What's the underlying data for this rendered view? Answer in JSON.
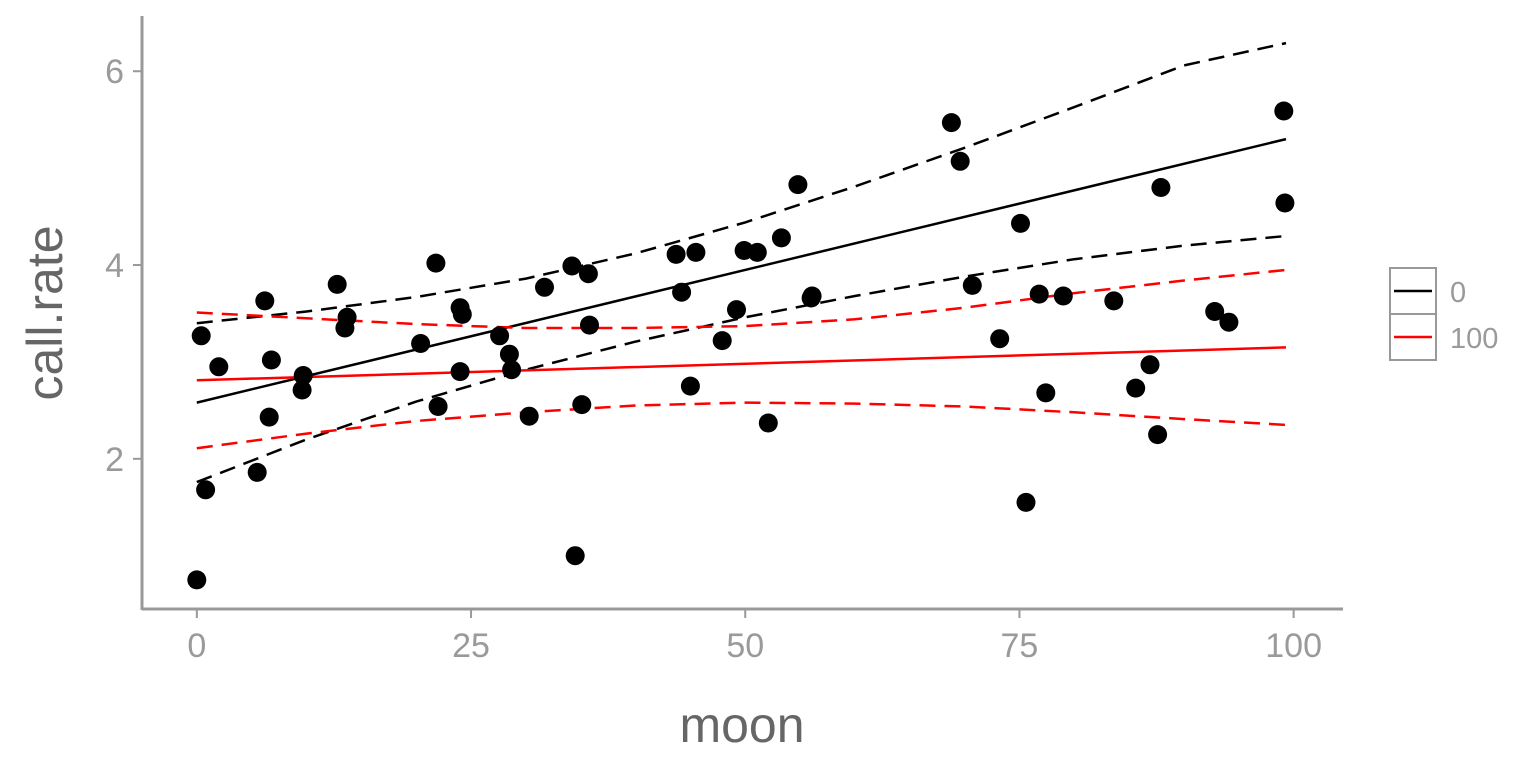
{
  "chart_data": {
    "type": "scatter",
    "title": "",
    "xlabel": "moon",
    "ylabel": "call.rate",
    "xlim": [
      -5,
      104.5
    ],
    "ylim": [
      0.45,
      6.57
    ],
    "xticks": [
      0,
      25,
      50,
      75,
      100
    ],
    "xtick_labels": [
      "0",
      "25",
      "50",
      "75",
      "100"
    ],
    "yticks": [
      2,
      4,
      6
    ],
    "ytick_labels": [
      "2",
      "4",
      "6"
    ],
    "grid": false,
    "legend_position": "right",
    "points": [
      {
        "x": 0.0,
        "y": 0.75
      },
      {
        "x": 0.4,
        "y": 3.27
      },
      {
        "x": 0.8,
        "y": 1.68
      },
      {
        "x": 2.0,
        "y": 2.95
      },
      {
        "x": 5.5,
        "y": 1.86
      },
      {
        "x": 6.2,
        "y": 3.63
      },
      {
        "x": 6.6,
        "y": 2.43
      },
      {
        "x": 6.8,
        "y": 3.02
      },
      {
        "x": 9.6,
        "y": 2.71
      },
      {
        "x": 9.7,
        "y": 2.86
      },
      {
        "x": 12.8,
        "y": 3.8
      },
      {
        "x": 13.5,
        "y": 3.35
      },
      {
        "x": 13.7,
        "y": 3.46
      },
      {
        "x": 20.4,
        "y": 3.19
      },
      {
        "x": 21.8,
        "y": 4.02
      },
      {
        "x": 22.0,
        "y": 2.54
      },
      {
        "x": 24.0,
        "y": 3.56
      },
      {
        "x": 24.0,
        "y": 2.9
      },
      {
        "x": 24.2,
        "y": 3.49
      },
      {
        "x": 27.6,
        "y": 3.27
      },
      {
        "x": 28.5,
        "y": 3.08
      },
      {
        "x": 28.7,
        "y": 2.92
      },
      {
        "x": 30.3,
        "y": 2.44
      },
      {
        "x": 31.7,
        "y": 3.77
      },
      {
        "x": 34.2,
        "y": 3.99
      },
      {
        "x": 34.5,
        "y": 1.0
      },
      {
        "x": 35.1,
        "y": 2.56
      },
      {
        "x": 35.7,
        "y": 3.91
      },
      {
        "x": 35.8,
        "y": 3.38
      },
      {
        "x": 43.7,
        "y": 4.11
      },
      {
        "x": 44.2,
        "y": 3.72
      },
      {
        "x": 45.0,
        "y": 2.75
      },
      {
        "x": 45.5,
        "y": 4.13
      },
      {
        "x": 47.9,
        "y": 3.22
      },
      {
        "x": 49.2,
        "y": 3.54
      },
      {
        "x": 49.9,
        "y": 4.15
      },
      {
        "x": 51.1,
        "y": 4.13
      },
      {
        "x": 52.1,
        "y": 2.37
      },
      {
        "x": 53.3,
        "y": 4.28
      },
      {
        "x": 54.8,
        "y": 4.83
      },
      {
        "x": 56.0,
        "y": 3.66
      },
      {
        "x": 56.1,
        "y": 3.68
      },
      {
        "x": 68.8,
        "y": 5.47
      },
      {
        "x": 69.6,
        "y": 5.07
      },
      {
        "x": 70.7,
        "y": 3.79
      },
      {
        "x": 73.2,
        "y": 3.24
      },
      {
        "x": 75.1,
        "y": 4.43
      },
      {
        "x": 75.6,
        "y": 1.55
      },
      {
        "x": 76.8,
        "y": 3.7
      },
      {
        "x": 77.4,
        "y": 2.68
      },
      {
        "x": 79.0,
        "y": 3.68
      },
      {
        "x": 83.6,
        "y": 3.63
      },
      {
        "x": 85.6,
        "y": 2.73
      },
      {
        "x": 86.9,
        "y": 2.97
      },
      {
        "x": 87.6,
        "y": 2.25
      },
      {
        "x": 87.9,
        "y": 4.8
      },
      {
        "x": 92.8,
        "y": 3.52
      },
      {
        "x": 94.1,
        "y": 3.41
      },
      {
        "x": 99.1,
        "y": 5.59
      },
      {
        "x": 99.2,
        "y": 4.64
      }
    ],
    "series": [
      {
        "name": "0",
        "color": "#000000",
        "fit": [
          [
            0,
            2.58
          ],
          [
            99.3,
            5.3
          ]
        ],
        "ci_upper": [
          [
            0,
            3.4
          ],
          [
            10,
            3.52
          ],
          [
            20,
            3.67
          ],
          [
            30,
            3.86
          ],
          [
            40,
            4.12
          ],
          [
            50,
            4.44
          ],
          [
            60,
            4.81
          ],
          [
            70,
            5.21
          ],
          [
            80,
            5.63
          ],
          [
            90,
            6.06
          ],
          [
            99.3,
            6.29
          ]
        ],
        "ci_lower": [
          [
            0,
            1.76
          ],
          [
            10,
            2.2
          ],
          [
            20,
            2.59
          ],
          [
            30,
            2.92
          ],
          [
            40,
            3.21
          ],
          [
            50,
            3.46
          ],
          [
            60,
            3.68
          ],
          [
            70,
            3.88
          ],
          [
            80,
            4.06
          ],
          [
            90,
            4.2
          ],
          [
            99.3,
            4.3
          ]
        ]
      },
      {
        "name": "100",
        "color": "#ff0000",
        "fit": [
          [
            0,
            2.81
          ],
          [
            99.3,
            3.15
          ]
        ],
        "ci_upper": [
          [
            0,
            3.51
          ],
          [
            10,
            3.45
          ],
          [
            20,
            3.39
          ],
          [
            30,
            3.35
          ],
          [
            40,
            3.35
          ],
          [
            50,
            3.37
          ],
          [
            60,
            3.44
          ],
          [
            70,
            3.56
          ],
          [
            80,
            3.71
          ],
          [
            90,
            3.84
          ],
          [
            99.3,
            3.95
          ]
        ],
        "ci_lower": [
          [
            0,
            2.11
          ],
          [
            10,
            2.26
          ],
          [
            20,
            2.39
          ],
          [
            30,
            2.48
          ],
          [
            40,
            2.55
          ],
          [
            50,
            2.58
          ],
          [
            60,
            2.57
          ],
          [
            70,
            2.54
          ],
          [
            80,
            2.48
          ],
          [
            90,
            2.41
          ],
          [
            99.3,
            2.35
          ]
        ]
      }
    ]
  }
}
